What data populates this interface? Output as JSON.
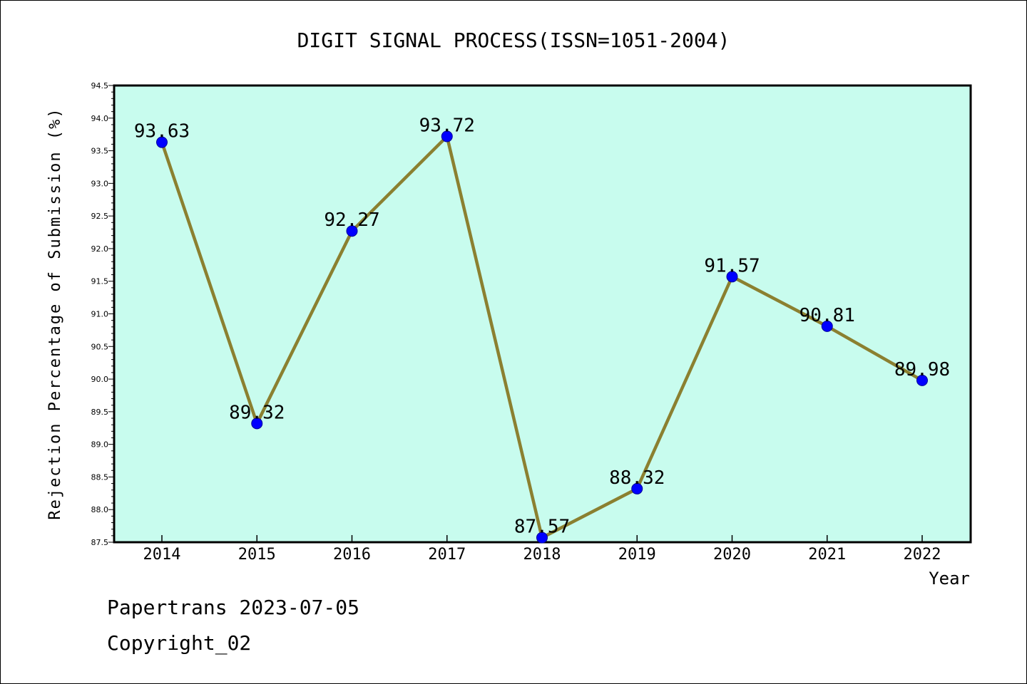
{
  "footer": {
    "line1": "Papertrans 2023-07-05",
    "line2": "Copyright_02"
  },
  "colors": {
    "plot_background": "#c8fcee",
    "line": "#8b8030",
    "marker": "#0000ff"
  },
  "chart_data": {
    "type": "line",
    "title": "DIGIT SIGNAL PROCESS(ISSN=1051-2004)",
    "xlabel": "Year",
    "ylabel": "Rejection Percentage of Submission (%)",
    "categories": [
      "2014",
      "2015",
      "2016",
      "2017",
      "2018",
      "2019",
      "2020",
      "2021",
      "2022"
    ],
    "values": [
      93.63,
      89.32,
      92.27,
      93.72,
      87.57,
      88.32,
      91.57,
      90.81,
      89.98
    ],
    "data_labels": [
      "93.63",
      "89.32",
      "92.27",
      "93.72",
      "87.57",
      "88.32",
      "91.57",
      "90.81",
      "89.98"
    ],
    "ylim": [
      87.5,
      94.5
    ],
    "yticks": [
      "87.5",
      "88.0",
      "88.5",
      "89.0",
      "89.5",
      "90.0",
      "90.5",
      "91.0",
      "91.5",
      "92.0",
      "92.5",
      "93.0",
      "93.5",
      "94.0",
      "94.5"
    ],
    "grid": false,
    "legend": "none"
  }
}
